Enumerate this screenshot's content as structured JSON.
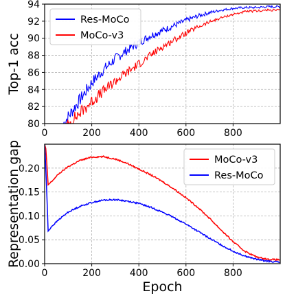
{
  "chart_data": [
    {
      "type": "line",
      "xlabel": "",
      "ylabel": "Top-1 acc",
      "xlim": [
        0,
        1000
      ],
      "ylim": [
        80,
        94
      ],
      "xticks": [
        0,
        200,
        400,
        600,
        800
      ],
      "yticks": [
        80,
        82,
        84,
        86,
        88,
        90,
        92,
        94
      ],
      "grid": true,
      "legend_position": "top-left",
      "series": [
        {
          "name": "Res-MoCo",
          "color": "#0000ff",
          "x": [
            80,
            100,
            130,
            160,
            200,
            250,
            300,
            350,
            400,
            450,
            500,
            550,
            600,
            650,
            700,
            750,
            800,
            850,
            900,
            950,
            1000
          ],
          "y": [
            80.0,
            80.8,
            82.0,
            83.2,
            84.8,
            86.3,
            87.6,
            88.6,
            89.5,
            90.3,
            90.9,
            91.5,
            92.1,
            92.6,
            93.0,
            93.3,
            93.5,
            93.6,
            93.6,
            93.7,
            93.7
          ]
        },
        {
          "name": "MoCo-v3",
          "color": "#ff0000",
          "x": [
            90,
            110,
            140,
            170,
            200,
            250,
            300,
            350,
            400,
            450,
            500,
            550,
            600,
            650,
            700,
            750,
            800,
            850,
            900,
            950,
            1000
          ],
          "y": [
            79.5,
            80.2,
            81.0,
            81.8,
            82.6,
            83.8,
            85.0,
            86.0,
            87.0,
            88.0,
            89.0,
            89.8,
            90.6,
            91.3,
            91.9,
            92.4,
            92.8,
            93.1,
            93.2,
            93.3,
            93.3
          ]
        }
      ]
    },
    {
      "type": "line",
      "xlabel": "Epoch",
      "ylabel": "Representation gap",
      "xlim": [
        0,
        1000
      ],
      "ylim": [
        0.0,
        0.25
      ],
      "xticks": [
        0,
        200,
        400,
        600,
        800
      ],
      "yticks": [
        0.0,
        0.05,
        0.1,
        0.15,
        0.2
      ],
      "grid": true,
      "legend_position": "top-right",
      "series": [
        {
          "name": "MoCo-v3",
          "color": "#ff0000",
          "x": [
            0,
            5,
            15,
            30,
            60,
            100,
            150,
            200,
            250,
            300,
            350,
            400,
            450,
            500,
            550,
            600,
            650,
            700,
            750,
            800,
            850,
            900,
            950,
            1000
          ],
          "y": [
            0.25,
            0.24,
            0.165,
            0.172,
            0.188,
            0.203,
            0.216,
            0.223,
            0.224,
            0.219,
            0.21,
            0.198,
            0.186,
            0.172,
            0.156,
            0.138,
            0.118,
            0.095,
            0.07,
            0.046,
            0.026,
            0.014,
            0.009,
            0.008
          ]
        },
        {
          "name": "Res-MoCo",
          "color": "#0000ff",
          "x": [
            0,
            5,
            15,
            30,
            60,
            100,
            150,
            200,
            250,
            300,
            350,
            400,
            450,
            500,
            550,
            600,
            650,
            700,
            750,
            800,
            850,
            900,
            950,
            1000
          ],
          "y": [
            0.25,
            0.2,
            0.068,
            0.078,
            0.092,
            0.108,
            0.12,
            0.128,
            0.133,
            0.134,
            0.131,
            0.126,
            0.118,
            0.108,
            0.096,
            0.083,
            0.068,
            0.053,
            0.039,
            0.026,
            0.016,
            0.009,
            0.005,
            0.003
          ]
        }
      ]
    }
  ]
}
